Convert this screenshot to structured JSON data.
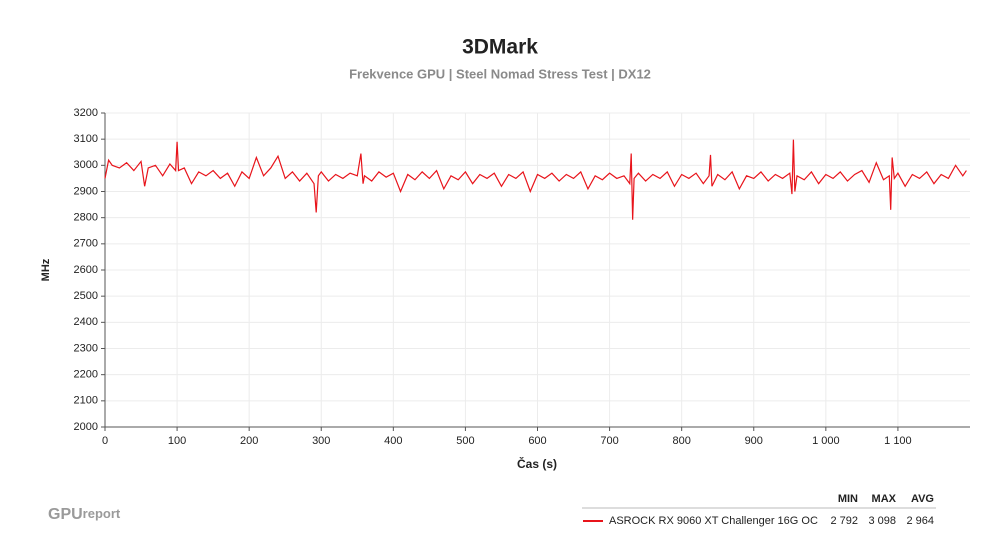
{
  "chart_data": {
    "type": "line",
    "title": "3DMark",
    "subtitle": "Frekvence GPU | Steel Nomad Stress Test | DX12",
    "x_label": "Čas (s)",
    "y_label": "MHz",
    "xlim": [
      0,
      1200
    ],
    "ylim": [
      2000,
      3200
    ],
    "xticks": [
      0,
      100,
      200,
      300,
      400,
      500,
      600,
      700,
      800,
      900,
      {
        "value": 1000,
        "label": "1 000"
      },
      {
        "value": 1100,
        "label": "1 100"
      }
    ],
    "yticks": [
      2000,
      2100,
      2200,
      2300,
      2400,
      2500,
      2600,
      2700,
      2800,
      2900,
      3000,
      3100,
      3200
    ],
    "grid": true,
    "x": [
      0,
      5,
      10,
      20,
      30,
      40,
      50,
      55,
      60,
      70,
      80,
      90,
      98,
      100,
      102,
      110,
      120,
      130,
      140,
      150,
      160,
      170,
      180,
      190,
      200,
      210,
      220,
      230,
      240,
      250,
      260,
      270,
      280,
      290,
      293,
      296,
      300,
      310,
      320,
      330,
      340,
      350,
      355,
      358,
      360,
      370,
      380,
      390,
      400,
      410,
      420,
      430,
      440,
      450,
      460,
      470,
      480,
      490,
      500,
      510,
      520,
      530,
      540,
      550,
      560,
      570,
      580,
      590,
      600,
      610,
      620,
      630,
      640,
      650,
      660,
      670,
      680,
      690,
      700,
      710,
      720,
      728,
      730,
      732,
      734,
      740,
      750,
      760,
      770,
      780,
      790,
      800,
      810,
      820,
      830,
      838,
      840,
      842,
      850,
      860,
      870,
      880,
      890,
      900,
      910,
      920,
      930,
      940,
      950,
      953,
      955,
      957,
      960,
      970,
      980,
      990,
      1000,
      1010,
      1020,
      1030,
      1040,
      1050,
      1060,
      1070,
      1080,
      1088,
      1090,
      1092,
      1095,
      1100,
      1110,
      1120,
      1130,
      1140,
      1150,
      1160,
      1170,
      1180,
      1190,
      1195
    ],
    "series": [
      {
        "name": "ASROCK RX 9060 XT Challenger 16G OC",
        "color": "#e8141b",
        "values": [
          2950,
          3020,
          3000,
          2990,
          3010,
          2980,
          3015,
          2920,
          2990,
          3000,
          2960,
          3005,
          2980,
          3090,
          2980,
          2990,
          2930,
          2975,
          2960,
          2980,
          2950,
          2970,
          2920,
          2975,
          2950,
          3030,
          2960,
          2990,
          3035,
          2950,
          2975,
          2940,
          2970,
          2930,
          2820,
          2960,
          2975,
          2940,
          2965,
          2950,
          2970,
          2960,
          3045,
          2930,
          2960,
          2940,
          2975,
          2955,
          2970,
          2900,
          2965,
          2945,
          2975,
          2950,
          2980,
          2910,
          2960,
          2945,
          2975,
          2930,
          2965,
          2950,
          2970,
          2920,
          2965,
          2950,
          2975,
          2900,
          2965,
          2950,
          2970,
          2940,
          2965,
          2950,
          2975,
          2910,
          2960,
          2945,
          2970,
          2950,
          2960,
          2930,
          3045,
          2792,
          2950,
          2970,
          2940,
          2965,
          2950,
          2975,
          2920,
          2965,
          2950,
          2970,
          2930,
          2960,
          3040,
          2920,
          2965,
          2945,
          2975,
          2910,
          2960,
          2950,
          2975,
          2940,
          2965,
          2950,
          2970,
          2890,
          3098,
          2900,
          2960,
          2945,
          2975,
          2930,
          2965,
          2950,
          2975,
          2940,
          2965,
          2980,
          2935,
          3010,
          2945,
          2960,
          2830,
          3030,
          2950,
          2970,
          2920,
          2965,
          2950,
          2975,
          2930,
          2965,
          2950,
          3000,
          2960,
          2980
        ]
      }
    ],
    "stats": {
      "headers": [
        "MIN",
        "MAX",
        "AVG"
      ],
      "values": [
        2792,
        3098,
        2964
      ],
      "value_labels": [
        "2 792",
        "3 098",
        "2 964"
      ]
    }
  },
  "logo": {
    "main": "GPU",
    "sub": "report"
  }
}
